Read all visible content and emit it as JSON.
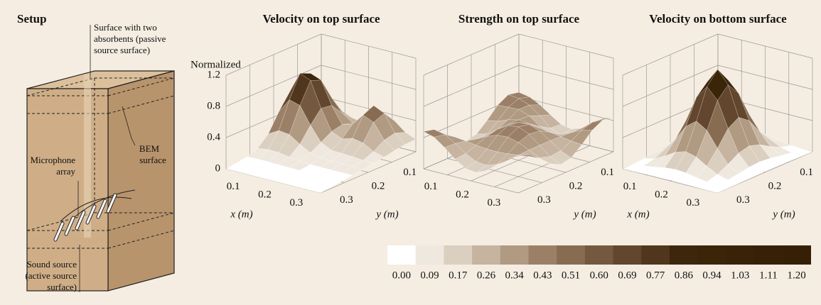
{
  "setup": {
    "title": "Setup",
    "passive_label": [
      "Surface with two",
      "absorbents (passive",
      "source surface)"
    ],
    "bem_label": [
      "BEM",
      "surface"
    ],
    "mic_label": [
      "Microphone",
      "array"
    ],
    "source_label": [
      "Sound source",
      "(active source",
      "surface)"
    ]
  },
  "z_axis": {
    "label": "Normalized",
    "ticks": [
      "1.2",
      "0.8",
      "0.4",
      "0"
    ]
  },
  "panels": [
    {
      "title": "Velocity on  top surface",
      "x_ticks": [
        "0.1",
        "0.2",
        "0.3"
      ],
      "x_label": "x (m)",
      "y_ticks": [
        "0.3",
        "0.2",
        "0.1"
      ],
      "y_label": "y (m)"
    },
    {
      "title": "Strength on  top surface",
      "x_ticks": [
        "0.1",
        "0.2",
        "0.3"
      ],
      "y_ticks": [
        "0.3",
        "0.2",
        "0.1"
      ],
      "y_label": "y (m)"
    },
    {
      "title": "Velocity on  bottom surface",
      "x_ticks": [
        "0.1",
        "0.2",
        "0.3"
      ],
      "x_label": "x (m)",
      "y_ticks": [
        "0.3",
        "0.2",
        "0.1"
      ],
      "y_label": "y (m)"
    }
  ],
  "colorbar": {
    "labels": [
      "0.00",
      "0.09",
      "0.17",
      "0.26",
      "0.34",
      "0.43",
      "0.51",
      "0.60",
      "0.69",
      "0.77",
      "0.86",
      "0.94",
      "1.03",
      "1.11",
      "1.20"
    ],
    "colors": [
      "#ffffff",
      "#efe8df",
      "#dbcfc0",
      "#c6b4a0",
      "#b09a82",
      "#9b8067",
      "#876c52",
      "#745940",
      "#62462d",
      "#4f361c",
      "#3c270d",
      "#3a2509",
      "#382308",
      "#362107",
      "#352006"
    ]
  }
}
